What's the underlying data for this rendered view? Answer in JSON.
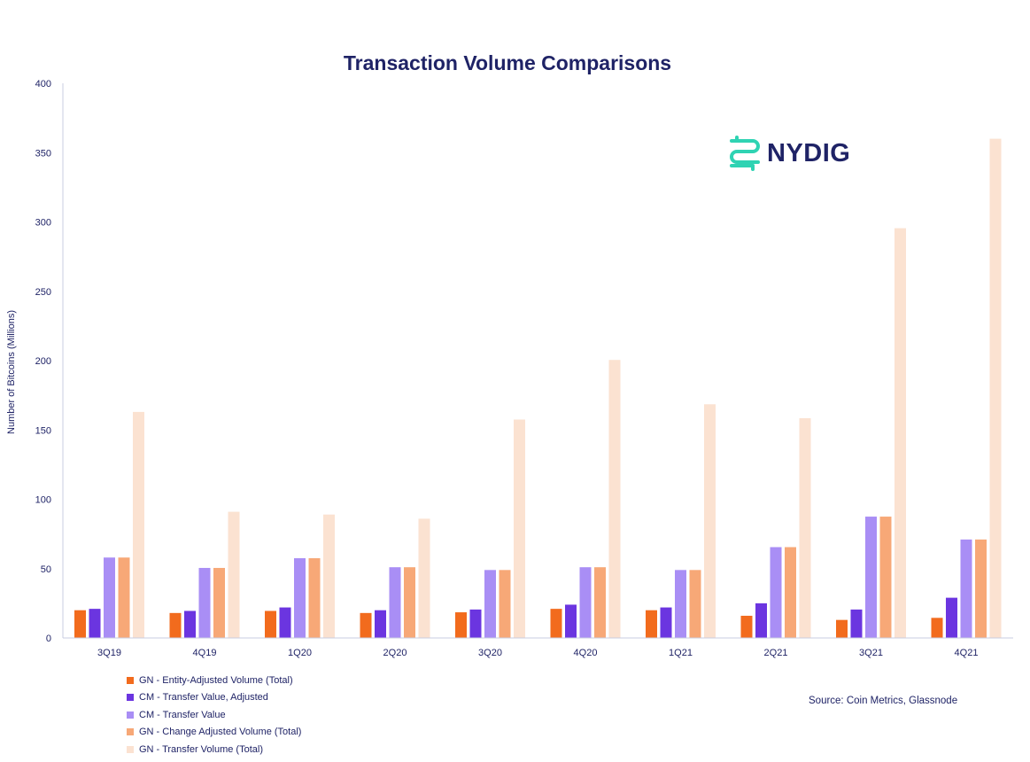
{
  "chart_data": {
    "type": "bar",
    "title": "Transaction Volume Comparisons",
    "xlabel": "",
    "ylabel": "Number of Bitcoins (Millions)",
    "ylim": [
      0,
      400
    ],
    "yticks": [
      "0",
      "50",
      "100",
      "150",
      "200",
      "250",
      "300",
      "350",
      "400"
    ],
    "grid": false,
    "legend_position": "bottom-left",
    "categories": [
      "3Q19",
      "4Q19",
      "1Q20",
      "2Q20",
      "3Q20",
      "4Q20",
      "1Q21",
      "2Q21",
      "3Q21",
      "4Q21"
    ],
    "series": [
      {
        "name": "GN - Entity-Adjusted Volume (Total)",
        "color": "#f26b1d",
        "values": [
          20,
          18,
          19.5,
          18,
          18.5,
          21,
          20,
          16,
          13,
          14.5
        ]
      },
      {
        "name": "CM - Transfer Value, Adjusted",
        "color": "#6b35e0",
        "values": [
          21,
          19.5,
          22,
          20,
          20.5,
          24,
          22,
          25,
          20.5,
          29
        ]
      },
      {
        "name": "CM - Transfer Value",
        "color": "#a98ef5",
        "values": [
          58,
          50.5,
          57.5,
          51,
          49,
          51,
          49,
          65.5,
          87.5,
          71
        ]
      },
      {
        "name": "GN - Change Adjusted Volume (Total)",
        "color": "#f7a877",
        "values": [
          58,
          50.5,
          57.5,
          51,
          49,
          51,
          49,
          65.5,
          87.5,
          71
        ]
      },
      {
        "name": "GN - Transfer Volume (Total)",
        "color": "#fbe2d1",
        "values": [
          163,
          91,
          89,
          86,
          157.5,
          200.5,
          168.5,
          158.5,
          295.5,
          360
        ]
      }
    ]
  },
  "logo": {
    "text": "NYDIG",
    "icon": "nydig-logo-icon",
    "icon_color": "#2fd3b3"
  },
  "source": "Source: Coin Metrics, Glassnode"
}
